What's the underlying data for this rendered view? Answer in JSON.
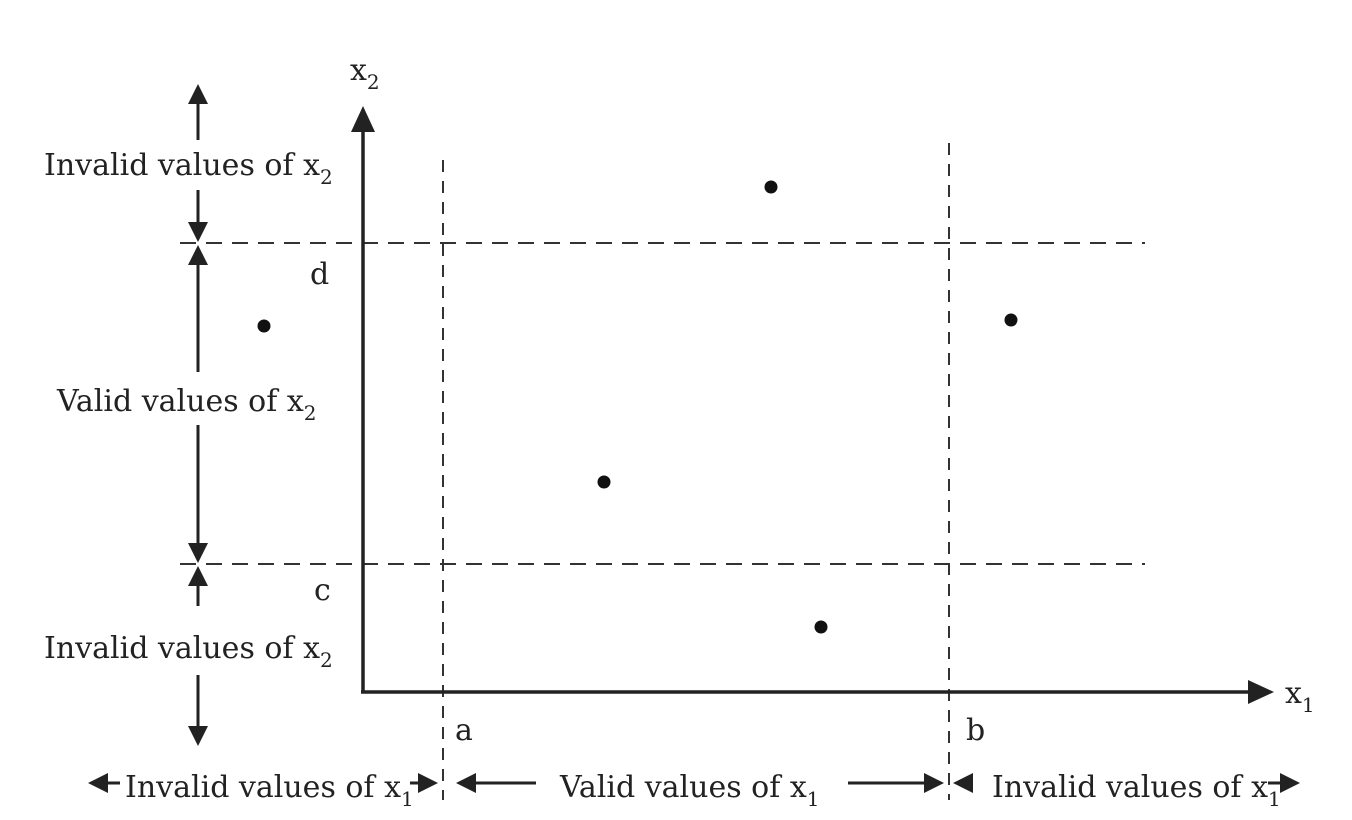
{
  "axes": {
    "x": {
      "base": "x",
      "subscript": "1"
    },
    "y": {
      "base": "x",
      "subscript": "2"
    }
  },
  "boundaries": {
    "a": "a",
    "b": "b",
    "c": "c",
    "d": "d"
  },
  "labels": {
    "x2_invalid_top": {
      "text": "Invalid values of x",
      "subscript": "2"
    },
    "x2_valid": {
      "text": "Valid values of x",
      "subscript": "2"
    },
    "x2_invalid_bottom": {
      "text": "Invalid values of x",
      "subscript": "2"
    },
    "x1_invalid_left": {
      "text": "Invalid values of x",
      "subscript": "1"
    },
    "x1_valid": {
      "text": "Valid values of x",
      "subscript": "1"
    },
    "x1_invalid_right": {
      "text": "Invalid values of x",
      "subscript": "1"
    }
  },
  "colors": {
    "ink": "#222222"
  }
}
